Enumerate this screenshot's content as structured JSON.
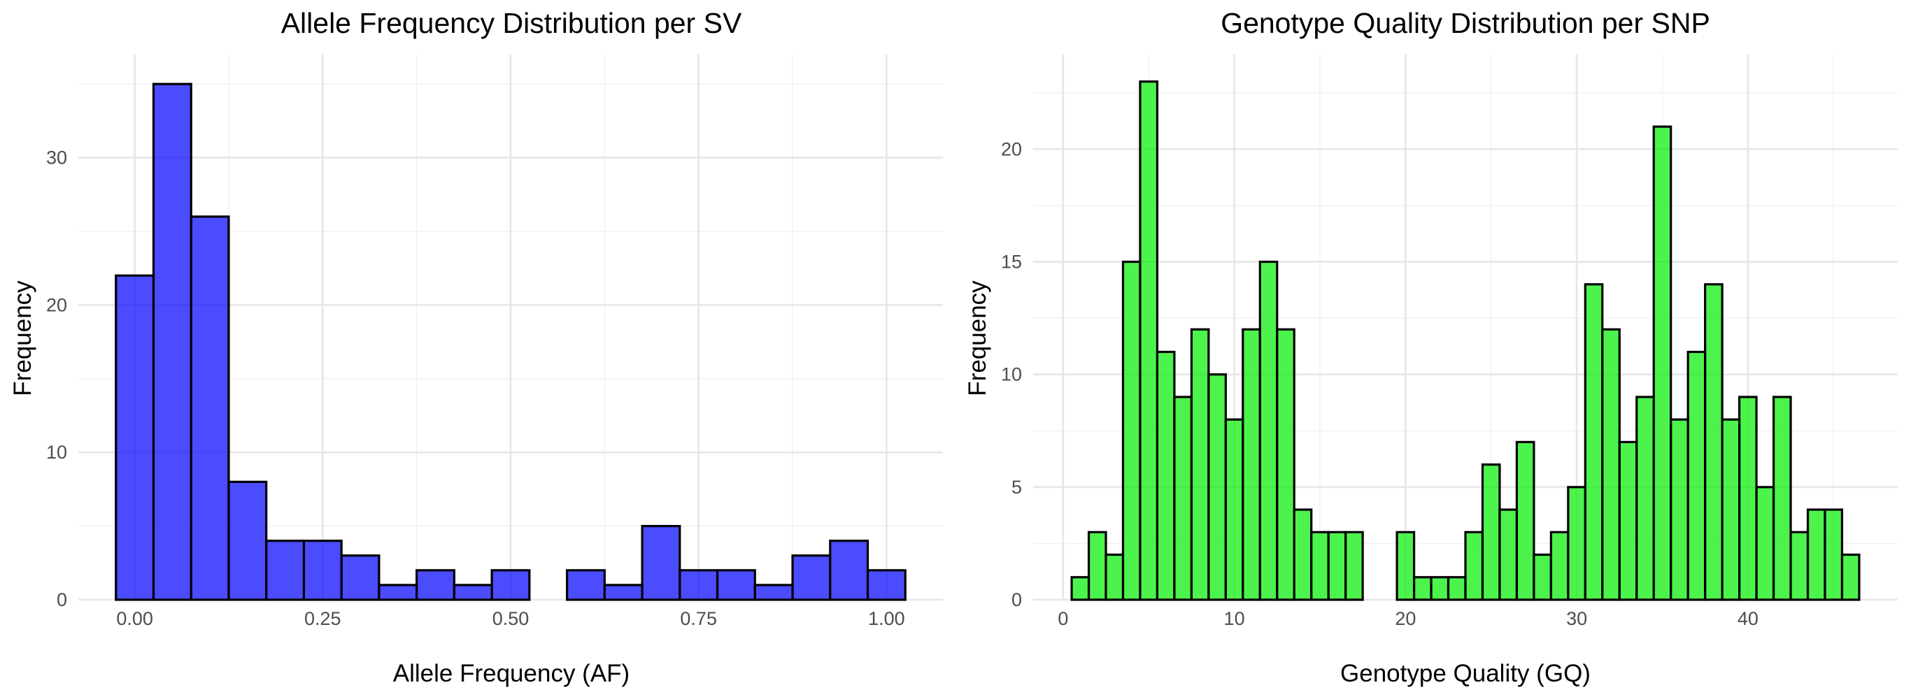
{
  "chart_data": [
    {
      "type": "bar",
      "title": "Allele Frequency Distribution per SV",
      "xlabel": "Allele Frequency (AF)",
      "ylabel": "Frequency",
      "bar_color": "#0000ff",
      "bin_width": 0.05,
      "x": [
        0.0,
        0.05,
        0.1,
        0.15,
        0.2,
        0.25,
        0.3,
        0.35,
        0.4,
        0.45,
        0.5,
        0.55,
        0.6,
        0.65,
        0.7,
        0.75,
        0.8,
        0.85,
        0.9,
        0.95,
        1.0
      ],
      "values": [
        22,
        35,
        26,
        8,
        4,
        4,
        3,
        1,
        2,
        1,
        2,
        0,
        2,
        1,
        5,
        2,
        2,
        1,
        3,
        4,
        2
      ],
      "xlim": [
        -0.075,
        1.075
      ],
      "ylim": [
        0,
        37
      ],
      "x_ticks": [
        0.0,
        0.25,
        0.5,
        0.75,
        1.0
      ],
      "x_tick_labels": [
        "0.00",
        "0.25",
        "0.50",
        "0.75",
        "1.00"
      ],
      "x_minor": [
        0.125,
        0.375,
        0.625,
        0.875
      ],
      "y_ticks": [
        0,
        10,
        20,
        30
      ],
      "y_tick_labels": [
        "0",
        "10",
        "20",
        "30"
      ],
      "y_minor": [
        5,
        15,
        25,
        35
      ],
      "grid": true
    },
    {
      "type": "bar",
      "title": "Genotype Quality Distribution per SNP",
      "xlabel": "Genotype Quality (GQ)",
      "ylabel": "Frequency",
      "bar_color": "#00ee00",
      "bin_width": 1,
      "x": [
        1,
        2,
        3,
        4,
        5,
        6,
        7,
        8,
        9,
        10,
        11,
        12,
        13,
        14,
        15,
        16,
        17,
        18,
        19,
        20,
        21,
        22,
        23,
        24,
        25,
        26,
        27,
        28,
        29,
        30,
        31,
        32,
        33,
        34,
        35,
        36,
        37,
        38,
        39,
        40,
        41,
        42,
        43,
        44,
        45,
        46
      ],
      "values": [
        1,
        3,
        2,
        15,
        23,
        11,
        9,
        12,
        10,
        8,
        12,
        15,
        12,
        4,
        3,
        3,
        3,
        0,
        0,
        3,
        1,
        1,
        1,
        3,
        6,
        4,
        7,
        2,
        3,
        5,
        14,
        12,
        7,
        9,
        21,
        8,
        11,
        14,
        8,
        9,
        5,
        9,
        3,
        4,
        4,
        2
      ],
      "xlim": [
        -1.75,
        48.75
      ],
      "ylim": [
        0,
        24.2
      ],
      "x_ticks": [
        0,
        10,
        20,
        30,
        40
      ],
      "x_tick_labels": [
        "0",
        "10",
        "20",
        "30",
        "40"
      ],
      "x_minor": [
        5,
        15,
        25,
        35,
        45
      ],
      "y_ticks": [
        0,
        5,
        10,
        15,
        20
      ],
      "y_tick_labels": [
        "0",
        "5",
        "10",
        "15",
        "20"
      ],
      "y_minor": [
        2.5,
        7.5,
        12.5,
        17.5,
        22.5
      ],
      "grid": true
    }
  ]
}
